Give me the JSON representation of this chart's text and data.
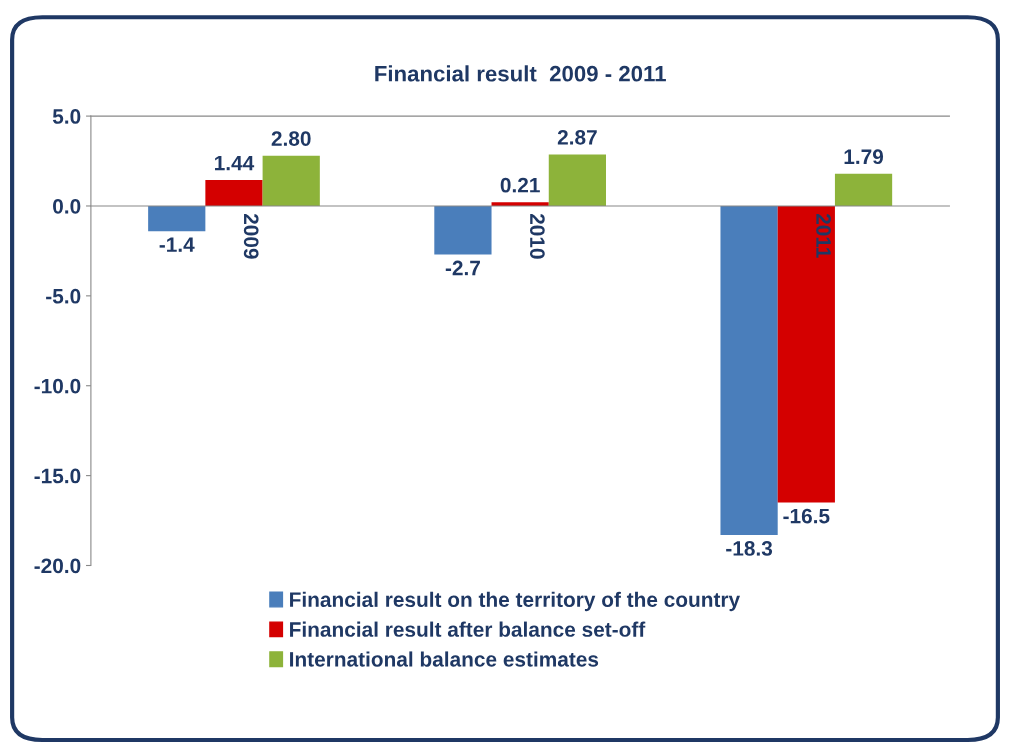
{
  "chart_data": {
    "type": "bar",
    "title": "Financial result  2009 - 2011",
    "categories": [
      "2009",
      "2010",
      "2011"
    ],
    "series": [
      {
        "name": "Financial result on the territory of the country",
        "color": "#4a7ebb",
        "values": [
          -1.4,
          -2.7,
          -18.3
        ],
        "value_labels": [
          "-1.4",
          "-2.7",
          "-18.3"
        ]
      },
      {
        "name": "Financial result after balance set-off",
        "color": "#d40000",
        "values": [
          1.44,
          0.21,
          -16.5
        ],
        "value_labels": [
          "1.44",
          "0.21",
          "-16.5"
        ]
      },
      {
        "name": "International balance estimates",
        "color": "#8db33a",
        "values": [
          2.8,
          2.87,
          1.79
        ],
        "value_labels": [
          "2.80",
          "2.87",
          "1.79"
        ]
      }
    ],
    "ylim": [
      -20,
      5
    ],
    "yticks": [
      {
        "value": -20,
        "label": "-20.0"
      },
      {
        "value": -15,
        "label": "-15.0"
      },
      {
        "value": -10,
        "label": "-10.0"
      },
      {
        "value": -5,
        "label": "-5.0"
      },
      {
        "value": 0,
        "label": "0.0"
      },
      {
        "value": 5,
        "label": "5.0"
      }
    ],
    "grid": false,
    "legend": "bottom"
  }
}
